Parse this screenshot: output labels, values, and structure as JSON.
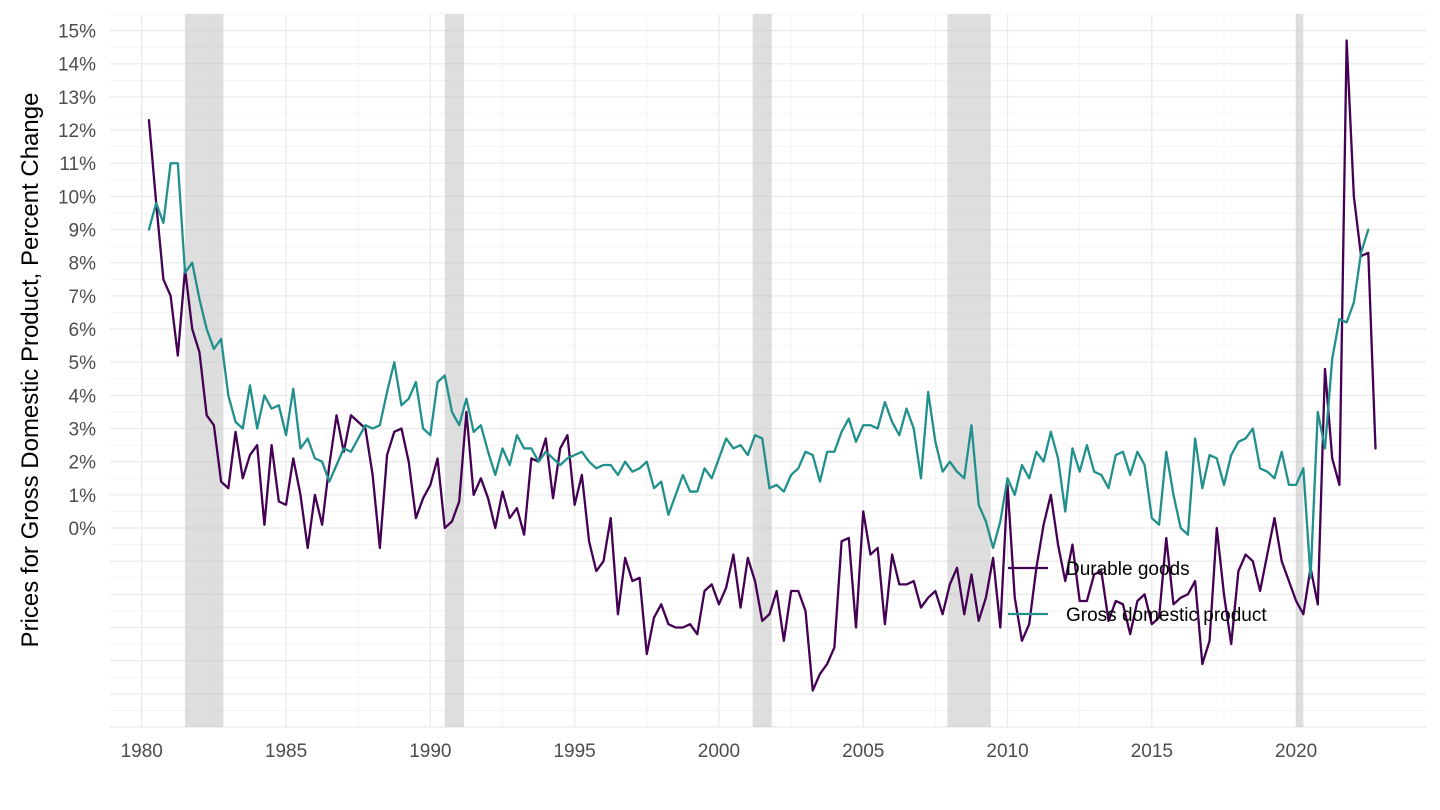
{
  "chart_data": {
    "type": "line",
    "title": "",
    "xlabel": "",
    "ylabel": "Prices for Gross Domestic Product,  Percent Change",
    "xlim": [
      1978.9,
      2024.5
    ],
    "ylim": [
      -6.0,
      15.5
    ],
    "x_ticks": [
      1980,
      1985,
      1990,
      1995,
      2000,
      2005,
      2010,
      2015,
      2020
    ],
    "x_tick_labels": [
      "1980",
      "1985",
      "1990",
      "1995",
      "2000",
      "2005",
      "2010",
      "2015",
      "2020"
    ],
    "y_ticks": [
      0,
      1,
      2,
      3,
      4,
      5,
      6,
      7,
      8,
      9,
      10,
      11,
      12,
      13,
      14,
      15
    ],
    "y_tick_labels": [
      "0%",
      "1%",
      "2%",
      "3%",
      "4%",
      "5%",
      "6%",
      "7%",
      "8%",
      "9%",
      "10%",
      "11%",
      "12%",
      "13%",
      "14%",
      "15%"
    ],
    "legend_position": "right-inside",
    "recessions": [
      [
        1981.5,
        1982.83
      ],
      [
        1990.5,
        1991.17
      ],
      [
        2001.17,
        2001.83
      ],
      [
        2007.92,
        2009.42
      ],
      [
        2020.0,
        2020.25
      ]
    ],
    "series": [
      {
        "name": "Durable goods",
        "color": "#440154",
        "start": 1980.25,
        "step": 0.25,
        "values": [
          12.3,
          9.8,
          7.5,
          7.0,
          5.2,
          7.8,
          6.0,
          5.3,
          3.4,
          3.1,
          1.4,
          1.2,
          2.9,
          1.5,
          2.2,
          2.5,
          0.1,
          2.5,
          0.8,
          0.7,
          2.1,
          1.0,
          -0.6,
          1.0,
          0.1,
          1.9,
          3.4,
          2.3,
          3.4,
          3.2,
          3.0,
          1.6,
          -0.6,
          2.2,
          2.9,
          3.0,
          2.0,
          0.3,
          0.9,
          1.3,
          2.1,
          0.0,
          0.2,
          0.8,
          3.5,
          1.0,
          1.5,
          0.9,
          0.0,
          1.1,
          0.3,
          0.6,
          -0.2,
          2.1,
          2.0,
          2.7,
          0.9,
          2.4,
          2.8,
          0.7,
          1.6,
          -0.4,
          -1.3,
          -1.0,
          0.3,
          -2.6,
          -0.9,
          -1.6,
          -1.5,
          -3.8,
          -2.7,
          -2.3,
          -2.9,
          -3.0,
          -3.0,
          -2.9,
          -3.2,
          -1.9,
          -1.7,
          -2.3,
          -1.8,
          -0.8,
          -2.4,
          -0.9,
          -1.6,
          -2.8,
          -2.6,
          -1.9,
          -3.4,
          -1.9,
          -1.9,
          -2.5,
          -4.9,
          -4.4,
          -4.1,
          -3.6,
          -0.4,
          -0.3,
          -3.0,
          0.5,
          -0.8,
          -0.6,
          -2.9,
          -0.8,
          -1.7,
          -1.7,
          -1.6,
          -2.4,
          -2.1,
          -1.9,
          -2.6,
          -1.7,
          -1.2,
          -2.6,
          -1.4,
          -2.8,
          -2.1,
          -0.9,
          -3.0,
          1.3,
          -2.1,
          -3.4,
          -2.9,
          -1.2,
          0.1,
          1.0,
          -0.5,
          -1.6,
          -0.5,
          -2.2,
          -2.2,
          -1.4,
          -1.3,
          -2.8,
          -2.2,
          -2.3,
          -3.2,
          -2.2,
          -2.0,
          -2.9,
          -2.7,
          -0.3,
          -2.3,
          -2.1,
          -2.0,
          -1.6,
          -4.1,
          -3.4,
          0.0,
          -2.0,
          -3.5,
          -1.3,
          -0.8,
          -1.0,
          -1.9,
          -0.8,
          0.3,
          -1.0,
          -1.6,
          -2.2,
          -2.6,
          -1.2,
          -2.3,
          4.8,
          2.1,
          1.3,
          14.7,
          10.0,
          8.2,
          8.3,
          2.4
        ]
      },
      {
        "name": "Gross domestic product",
        "color": "#21908C",
        "start": 1980.25,
        "step": 0.25,
        "values": [
          9.0,
          9.8,
          9.2,
          11.0,
          11.0,
          7.7,
          8.0,
          6.9,
          6.0,
          5.4,
          5.7,
          4.0,
          3.2,
          3.0,
          4.3,
          3.0,
          4.0,
          3.6,
          3.7,
          2.8,
          4.2,
          2.4,
          2.7,
          2.1,
          2.0,
          1.4,
          1.9,
          2.4,
          2.3,
          2.7,
          3.1,
          3.0,
          3.1,
          4.1,
          5.0,
          3.7,
          3.9,
          4.4,
          3.0,
          2.8,
          4.4,
          4.6,
          3.5,
          3.1,
          3.9,
          2.9,
          3.1,
          2.3,
          1.6,
          2.4,
          1.9,
          2.8,
          2.4,
          2.4,
          2.0,
          2.3,
          2.1,
          1.9,
          2.1,
          2.2,
          2.3,
          2.0,
          1.8,
          1.9,
          1.9,
          1.6,
          2.0,
          1.7,
          1.8,
          2.0,
          1.2,
          1.4,
          0.4,
          1.0,
          1.6,
          1.1,
          1.1,
          1.8,
          1.5,
          2.1,
          2.7,
          2.4,
          2.5,
          2.2,
          2.8,
          2.7,
          1.2,
          1.3,
          1.1,
          1.6,
          1.8,
          2.3,
          2.2,
          1.4,
          2.3,
          2.3,
          2.9,
          3.3,
          2.6,
          3.1,
          3.1,
          3.0,
          3.8,
          3.2,
          2.8,
          3.6,
          3.0,
          1.5,
          4.1,
          2.6,
          1.7,
          2.0,
          1.7,
          1.5,
          3.1,
          0.7,
          0.2,
          -0.6,
          0.2,
          1.5,
          1.0,
          1.9,
          1.5,
          2.3,
          2.0,
          2.9,
          2.1,
          0.5,
          2.4,
          1.7,
          2.5,
          1.7,
          1.6,
          1.2,
          2.2,
          2.3,
          1.6,
          2.3,
          1.9,
          0.3,
          0.1,
          2.3,
          1.0,
          0.0,
          -0.2,
          2.7,
          1.2,
          2.2,
          2.1,
          1.3,
          2.2,
          2.6,
          2.7,
          3.0,
          1.8,
          1.7,
          1.5,
          2.3,
          1.3,
          1.3,
          1.8,
          -1.5,
          3.5,
          2.4,
          5.1,
          6.3,
          6.2,
          6.8,
          8.3,
          9.0
        ]
      }
    ]
  }
}
